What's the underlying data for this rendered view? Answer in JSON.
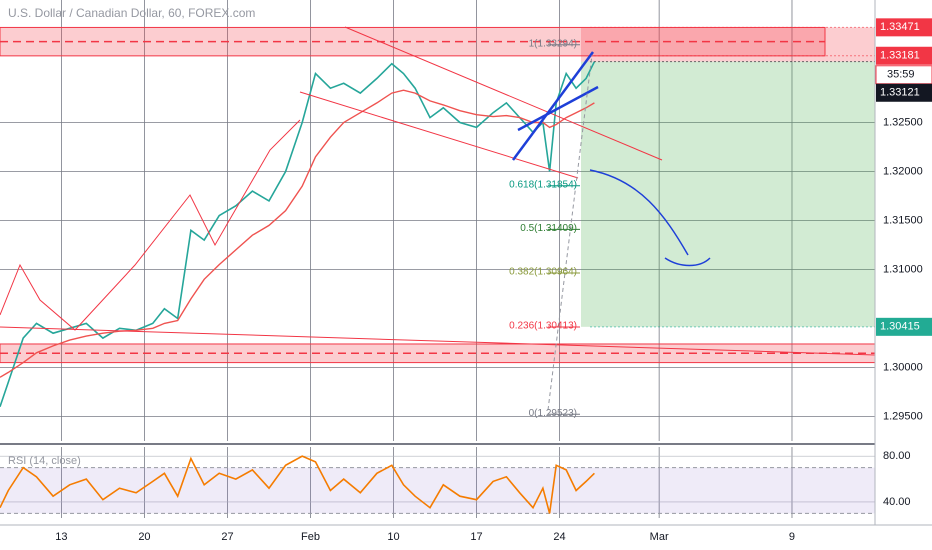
{
  "chart_data": [
    {
      "type": "line",
      "title": "U.S. Dollar / Canadian Dollar, 60, FOREX.com",
      "x": [
        1.3,
        1.8,
        2.7,
        3.5,
        4.5,
        5.5,
        6.5,
        7.5,
        8.5,
        9.5,
        10.5,
        11.2,
        12.0,
        12.8,
        13.6,
        14.5,
        15.5,
        16.5,
        17.5,
        18.5,
        19.5,
        20.3,
        21.2,
        22,
        23,
        24,
        24.9,
        25.6,
        26.3,
        27.2,
        28,
        29,
        30,
        31,
        31.8,
        32.6,
        33.4,
        34.0,
        34.4,
        34.8,
        35.4,
        36,
        36.6,
        37.1
      ],
      "series": [
        {
          "color": "#26a69a",
          "values": [
            1.296,
            1.2985,
            1.303,
            1.3045,
            1.3035,
            1.304,
            1.3045,
            1.303,
            1.304,
            1.3038,
            1.3045,
            1.306,
            1.305,
            1.314,
            1.313,
            1.3155,
            1.3165,
            1.318,
            1.317,
            1.32,
            1.325,
            1.33,
            1.3285,
            1.329,
            1.328,
            1.3295,
            1.331,
            1.33,
            1.3285,
            1.3255,
            1.3265,
            1.325,
            1.3245,
            1.326,
            1.327,
            1.3255,
            1.324,
            1.325,
            1.32,
            1.327,
            1.33,
            1.3285,
            1.3295,
            1.3312
          ]
        },
        {
          "color": "#ef5350",
          "values": [
            1.299,
            1.2995,
            1.3005,
            1.3015,
            1.3022,
            1.3028,
            1.3032,
            1.3035,
            1.3037,
            1.3038,
            1.304,
            1.3045,
            1.3048,
            1.307,
            1.309,
            1.3105,
            1.312,
            1.3135,
            1.3145,
            1.316,
            1.3185,
            1.3215,
            1.3235,
            1.325,
            1.326,
            1.327,
            1.328,
            1.3283,
            1.328,
            1.3272,
            1.3268,
            1.3262,
            1.3258,
            1.3256,
            1.3257,
            1.3255,
            1.325,
            1.325,
            1.3245,
            1.3248,
            1.3255,
            1.326,
            1.3265,
            1.327
          ]
        }
      ],
      "xlim": [
        1.3,
        54
      ],
      "xticks": [
        {
          "value": 5,
          "label": "13"
        },
        {
          "value": 10,
          "label": "20"
        },
        {
          "value": 15,
          "label": "27"
        },
        {
          "value": 20,
          "label": "Feb"
        },
        {
          "value": 25,
          "label": "10"
        },
        {
          "value": 30,
          "label": "17"
        },
        {
          "value": 35,
          "label": "24"
        },
        {
          "value": 41,
          "label": "Mar"
        },
        {
          "value": 49,
          "label": "9"
        }
      ],
      "ylim": [
        1.2925,
        1.3375
      ],
      "yticks": [
        {
          "value": 1.295,
          "label": "1.29500"
        },
        {
          "value": 1.3,
          "label": "1.30000"
        },
        {
          "value": 1.31,
          "label": "1.31000"
        },
        {
          "value": 1.315,
          "label": "1.31500"
        },
        {
          "value": 1.32,
          "label": "1.32000"
        },
        {
          "value": 1.325,
          "label": "1.32500"
        }
      ],
      "grid": true,
      "zones": [
        [
          1.3318,
          1.3347
        ],
        [
          1.3005,
          1.3024
        ]
      ],
      "fib_levels": [
        {
          "value": 1.33294,
          "label": "1(1.33294)",
          "color": "#787b86"
        },
        {
          "value": 1.31854,
          "label": "0.618(1.31854)",
          "color": "#089981"
        },
        {
          "value": 1.31409,
          "label": "0.5(1.31409)",
          "color": "#2e7d32"
        },
        {
          "value": 1.30964,
          "label": "0.382(1.30964)",
          "color": "#8a9a3b"
        },
        {
          "value": 1.30413,
          "label": "0.236(1.30413)",
          "color": "#f23645"
        },
        {
          "value": 1.29523,
          "label": "0(1.29523)",
          "color": "#787b86"
        }
      ],
      "price_labels": [
        {
          "value": 1.33471,
          "label": "1.33471",
          "color": "#f23645"
        },
        {
          "value": 1.33181,
          "label": "1.33181",
          "color": "#f23645"
        },
        {
          "value": 1.33121,
          "label": "1.33121",
          "color": "#131722"
        },
        {
          "value": 1.30415,
          "label": "1.30415",
          "color": "#22ab94"
        }
      ],
      "countdown": "35:59"
    },
    {
      "type": "line",
      "title": "RSI (14, close)",
      "x": [
        1.3,
        1.8,
        2.7,
        3.5,
        4.5,
        5.5,
        6.5,
        7.5,
        8.5,
        9.5,
        10.5,
        11.2,
        12.0,
        12.8,
        13.6,
        14.5,
        15.5,
        16.5,
        17.5,
        18.5,
        19.5,
        20.3,
        21.2,
        22,
        23,
        24,
        24.9,
        25.6,
        26.3,
        27.2,
        28,
        29,
        30,
        31,
        31.8,
        32.6,
        33.4,
        34.0,
        34.4,
        34.8,
        35.4,
        36,
        36.6,
        37.1
      ],
      "series": [
        {
          "color": "#f57c00",
          "values": [
            35,
            50,
            70,
            62,
            45,
            55,
            60,
            42,
            52,
            48,
            58,
            65,
            45,
            78,
            55,
            65,
            60,
            68,
            52,
            72,
            80,
            75,
            50,
            60,
            48,
            65,
            72,
            55,
            45,
            35,
            55,
            45,
            42,
            58,
            62,
            48,
            35,
            52,
            30,
            72,
            68,
            50,
            58,
            65
          ]
        }
      ],
      "xlim": [
        1.3,
        54
      ],
      "ylim": [
        26,
        88
      ],
      "yticks": [
        {
          "value": 80,
          "label": "80.00"
        },
        {
          "value": 40,
          "label": "40.00"
        }
      ],
      "band": [
        30,
        70
      ]
    }
  ]
}
